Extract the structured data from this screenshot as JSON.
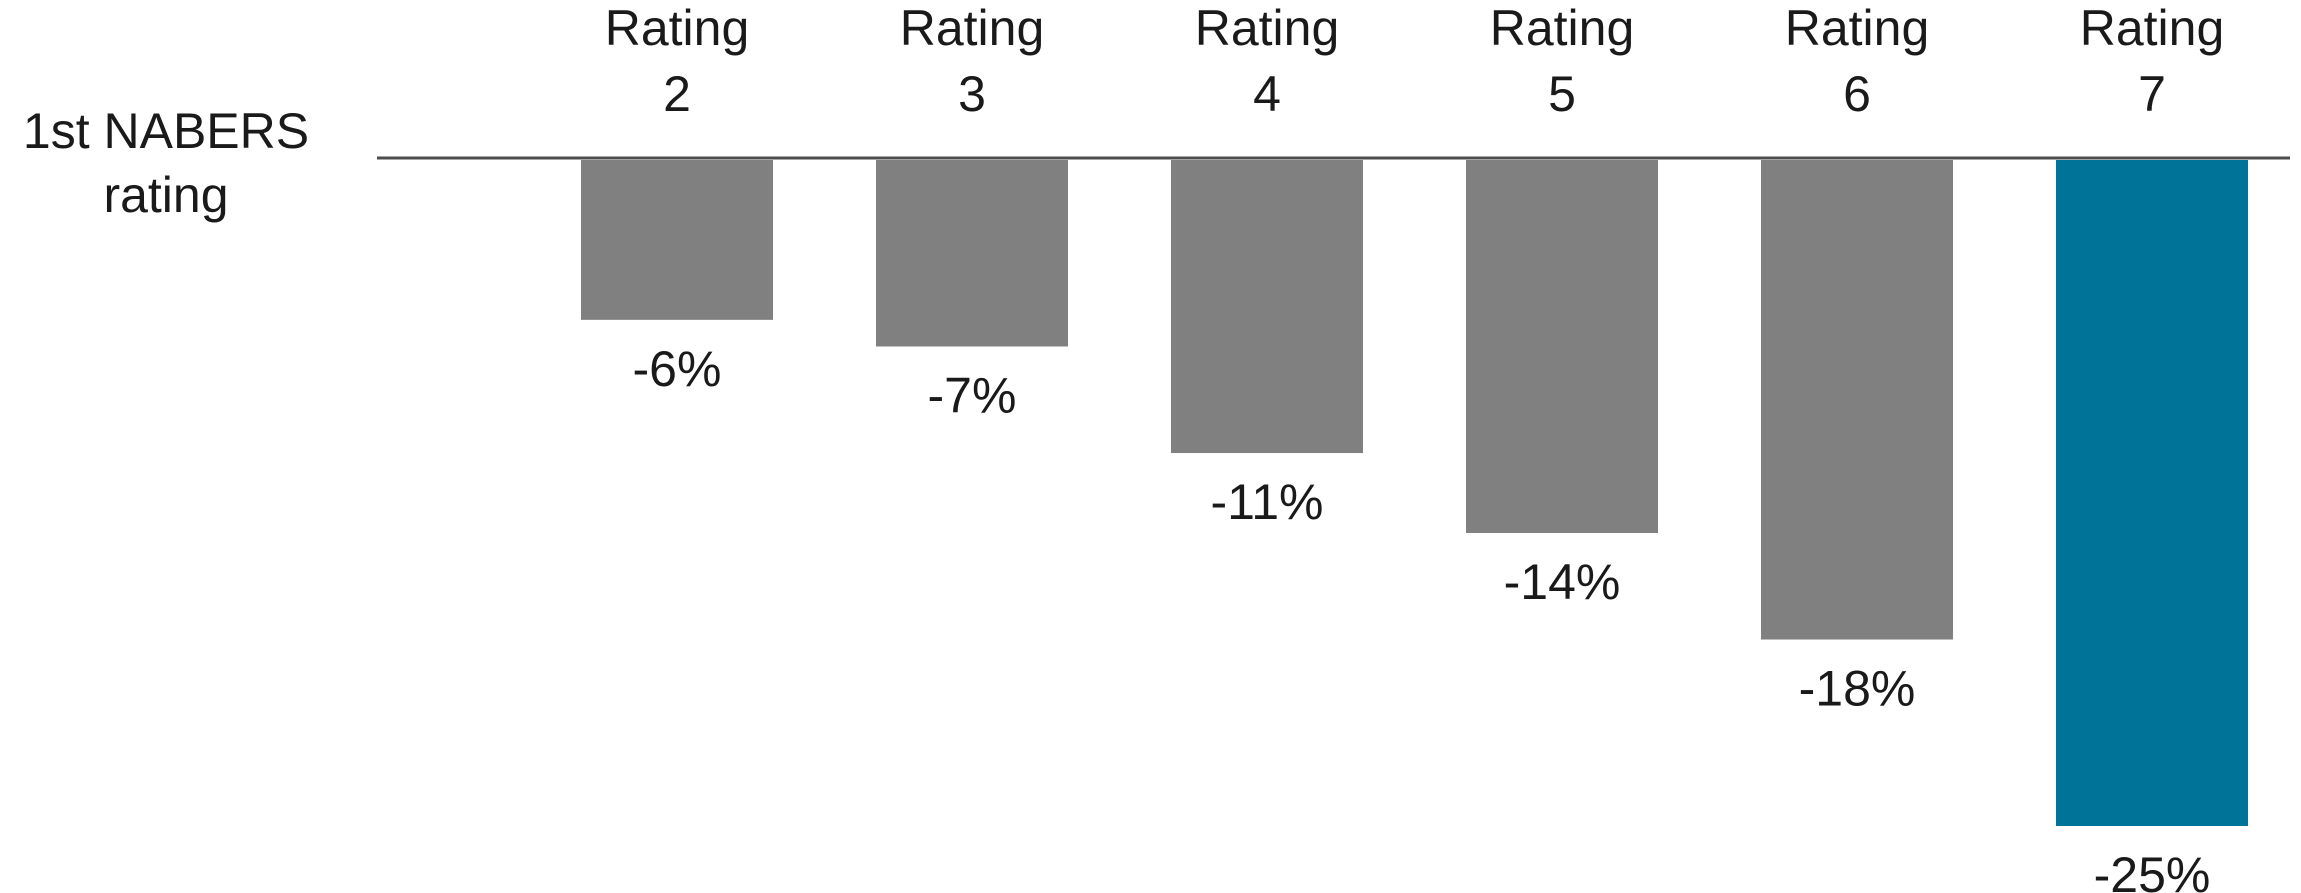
{
  "chart_data": {
    "type": "bar",
    "row_label": [
      "1st NABERS",
      "rating"
    ],
    "categories": [
      [
        "Rating",
        "2"
      ],
      [
        "Rating",
        "3"
      ],
      [
        "Rating",
        "4"
      ],
      [
        "Rating",
        "5"
      ],
      [
        "Rating",
        "6"
      ],
      [
        "Rating",
        "7"
      ]
    ],
    "values": [
      -6,
      -7,
      -11,
      -14,
      -18,
      -25
    ],
    "data_labels": [
      "-6%",
      "-7%",
      "-11%",
      "-14%",
      "-18%",
      "-25%"
    ],
    "ylim": [
      -25,
      0
    ],
    "grid": false,
    "colors": {
      "default_bar": "#808080",
      "highlight_bar": "#007398",
      "axis_line": "#4d4d4d",
      "text": "#1a1a1a"
    },
    "highlight_index": 5
  }
}
